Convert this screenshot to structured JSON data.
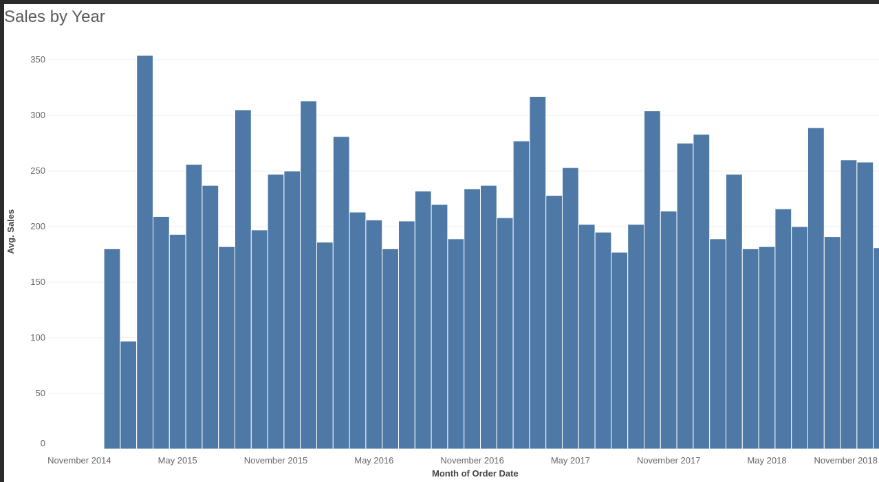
{
  "title": "Sales by Year",
  "colors": {
    "bar": "#4e79a7",
    "bar_edge": "#ffffff",
    "grid": "#ececec",
    "axis_text": "#666666"
  },
  "chart_data": {
    "type": "bar",
    "title": "Sales by Year",
    "xlabel": "Month of Order Date",
    "ylabel": "Avg. Sales",
    "ylim": [
      0,
      370
    ],
    "yticks": [
      0,
      50,
      100,
      150,
      200,
      250,
      300,
      350
    ],
    "grid": true,
    "x_tick_labels": [
      {
        "label": "November 2014",
        "at": "2014-11"
      },
      {
        "label": "May 2015",
        "at": "2015-05"
      },
      {
        "label": "November 2015",
        "at": "2015-11"
      },
      {
        "label": "May 2016",
        "at": "2016-05"
      },
      {
        "label": "November 2016",
        "at": "2016-11"
      },
      {
        "label": "May 2017",
        "at": "2017-05"
      },
      {
        "label": "November 2017",
        "at": "2017-11"
      },
      {
        "label": "May 2018",
        "at": "2018-05"
      },
      {
        "label": "November 2018",
        "at": "2018-11"
      }
    ],
    "categories": [
      "2014-11",
      "2014-12",
      "2015-01",
      "2015-02",
      "2015-03",
      "2015-04",
      "2015-05",
      "2015-06",
      "2015-07",
      "2015-08",
      "2015-09",
      "2015-10",
      "2015-11",
      "2015-12",
      "2016-01",
      "2016-02",
      "2016-03",
      "2016-04",
      "2016-05",
      "2016-06",
      "2016-07",
      "2016-08",
      "2016-09",
      "2016-10",
      "2016-11",
      "2016-12",
      "2017-01",
      "2017-02",
      "2017-03",
      "2017-04",
      "2017-05",
      "2017-06",
      "2017-07",
      "2017-08",
      "2017-09",
      "2017-10",
      "2017-11",
      "2017-12",
      "2018-01",
      "2018-02",
      "2018-03",
      "2018-04",
      "2018-05",
      "2018-06",
      "2018-07",
      "2018-08",
      "2018-09",
      "2018-10",
      "2018-11",
      "2018-12"
    ],
    "values": [
      null,
      null,
      180,
      97,
      354,
      209,
      193,
      256,
      237,
      182,
      305,
      197,
      247,
      250,
      313,
      186,
      281,
      213,
      206,
      180,
      205,
      232,
      220,
      189,
      234,
      237,
      208,
      277,
      317,
      228,
      253,
      202,
      195,
      177,
      202,
      304,
      214,
      275,
      283,
      189,
      247,
      180,
      182,
      216,
      200,
      289,
      191,
      260,
      258,
      181
    ]
  }
}
